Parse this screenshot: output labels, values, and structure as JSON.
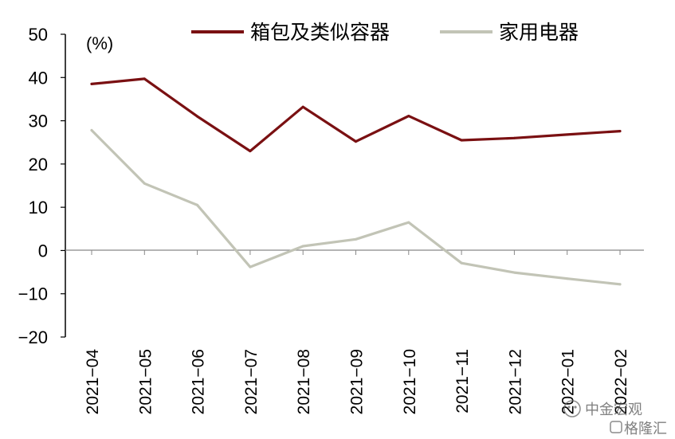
{
  "chart_data": {
    "type": "line",
    "unit_label": "(%)",
    "x": [
      "2021-04",
      "2021-05",
      "2021-06",
      "2021-07",
      "2021-08",
      "2021-09",
      "2021-10",
      "2021-11",
      "2021-12",
      "2022-01",
      "2022-02"
    ],
    "ylim": [
      -20,
      50
    ],
    "yticks": [
      50,
      40,
      30,
      20,
      10,
      0,
      -10,
      -20
    ],
    "grid": false,
    "legend_position": "top",
    "series": [
      {
        "name": "箱包及类似容器",
        "color": "#7a1012",
        "values": [
          38.5,
          39.7,
          31.0,
          23.0,
          33.2,
          25.2,
          31.1,
          25.5,
          26.0,
          26.8,
          27.6
        ]
      },
      {
        "name": "家用电器",
        "color": "#c2c4b6",
        "values": [
          27.8,
          15.5,
          10.5,
          -3.8,
          1.0,
          2.6,
          6.5,
          -2.9,
          -5.1,
          -6.5,
          -7.8
        ]
      }
    ]
  },
  "watermark": {
    "line1": "中金宏观",
    "line2": "格隆汇"
  }
}
